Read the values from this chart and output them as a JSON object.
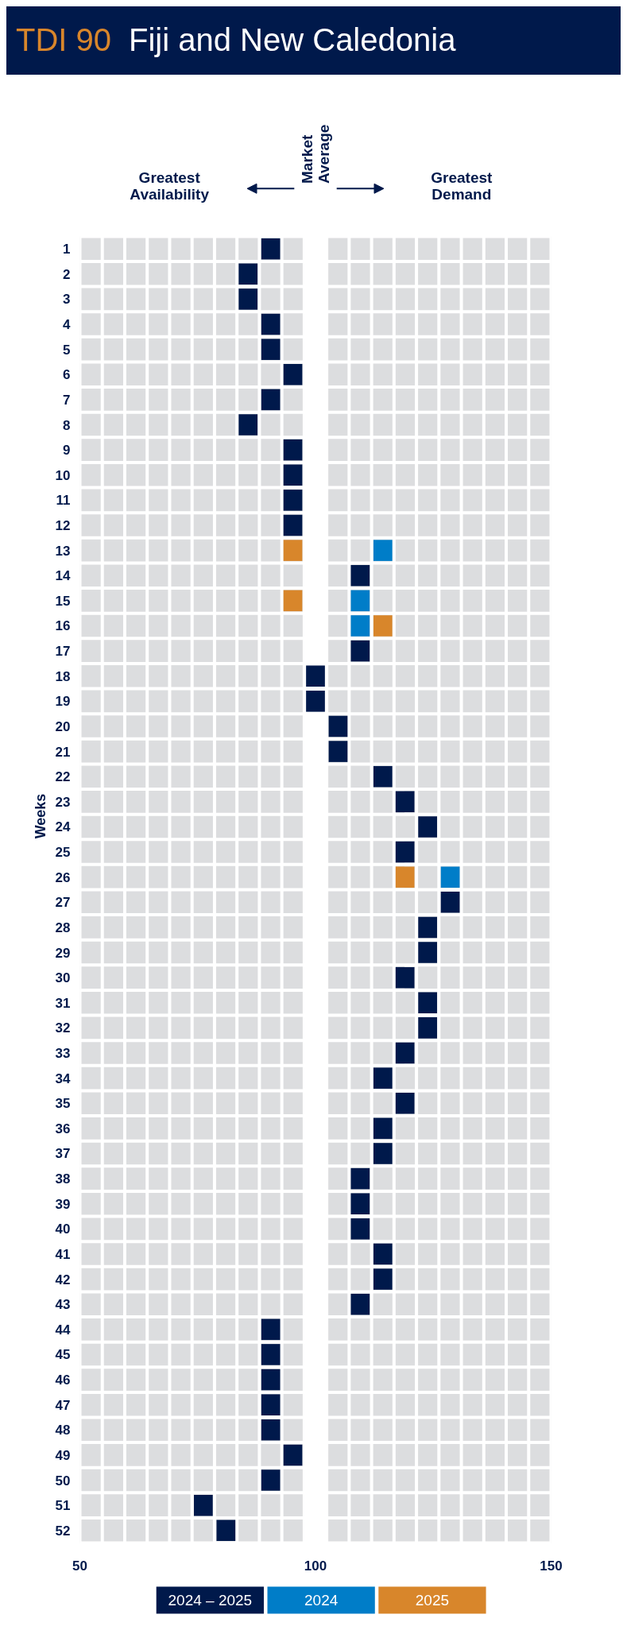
{
  "chart_data": {
    "type": "scatter",
    "orientation": "horizontal",
    "marker": "square",
    "legend": "bottom",
    "bands": [
      {
        "axis": "x",
        "from": 50,
        "to": 97.6,
        "color": "#dcdddf"
      },
      {
        "axis": "x",
        "from": 102.4,
        "to": 150,
        "color": "#dcdddf"
      }
    ],
    "subtitle": "TDI 90",
    "title": "Fiji and New Caledonia",
    "ylabel": "Weeks",
    "annotations": [
      "Greatest Availability",
      "Market Average",
      "Greatest Demand"
    ],
    "categories": [
      "1",
      "2",
      "3",
      "4",
      "5",
      "6",
      "7",
      "8",
      "9",
      "10",
      "11",
      "12",
      "13",
      "14",
      "15",
      "16",
      "17",
      "18",
      "19",
      "20",
      "21",
      "22",
      "23",
      "24",
      "25",
      "26",
      "27",
      "28",
      "29",
      "30",
      "31",
      "32",
      "33",
      "34",
      "35",
      "36",
      "37",
      "38",
      "39",
      "40",
      "41",
      "42",
      "43",
      "44",
      "45",
      "46",
      "47",
      "48",
      "49",
      "50",
      "51",
      "52"
    ],
    "xlim": [
      50,
      150
    ],
    "xticks": [
      50,
      100,
      150
    ],
    "series": [
      {
        "name": "2024 – 2025",
        "color": "#00194b",
        "values": [
          90.5,
          85.7,
          85.7,
          90.5,
          90.5,
          95.2,
          90.5,
          85.7,
          95.2,
          95.2,
          95.2,
          95.2,
          null,
          109.5,
          null,
          null,
          109.5,
          100,
          100,
          104.8,
          104.8,
          114.3,
          119.0,
          123.8,
          119.0,
          null,
          128.6,
          123.8,
          123.8,
          119.0,
          123.8,
          123.8,
          119.0,
          114.3,
          119.0,
          114.3,
          114.3,
          109.5,
          109.5,
          109.5,
          114.3,
          114.3,
          109.5,
          90.5,
          90.5,
          90.5,
          90.5,
          90.5,
          95.2,
          90.5,
          76.2,
          81.0
        ]
      },
      {
        "name": "2024",
        "color": "#007dc8",
        "values": [
          null,
          null,
          null,
          null,
          null,
          null,
          null,
          null,
          null,
          null,
          null,
          null,
          114.3,
          null,
          109.5,
          109.5,
          null,
          null,
          null,
          null,
          null,
          null,
          null,
          null,
          null,
          128.6,
          null,
          null,
          null,
          null,
          null,
          null,
          null,
          null,
          null,
          null,
          null,
          null,
          null,
          null,
          null,
          null,
          null,
          null,
          null,
          null,
          null,
          null,
          null,
          null,
          null,
          null
        ]
      },
      {
        "name": "2025",
        "color": "#d8862b",
        "values": [
          null,
          null,
          null,
          null,
          null,
          null,
          null,
          null,
          null,
          null,
          null,
          null,
          95.2,
          null,
          95.2,
          114.3,
          null,
          null,
          null,
          null,
          null,
          null,
          null,
          null,
          null,
          119.0,
          null,
          null,
          null,
          null,
          null,
          null,
          null,
          null,
          null,
          null,
          null,
          null,
          null,
          null,
          null,
          null,
          null,
          null,
          null,
          null,
          null,
          null,
          null,
          null,
          null,
          null
        ]
      }
    ]
  }
}
